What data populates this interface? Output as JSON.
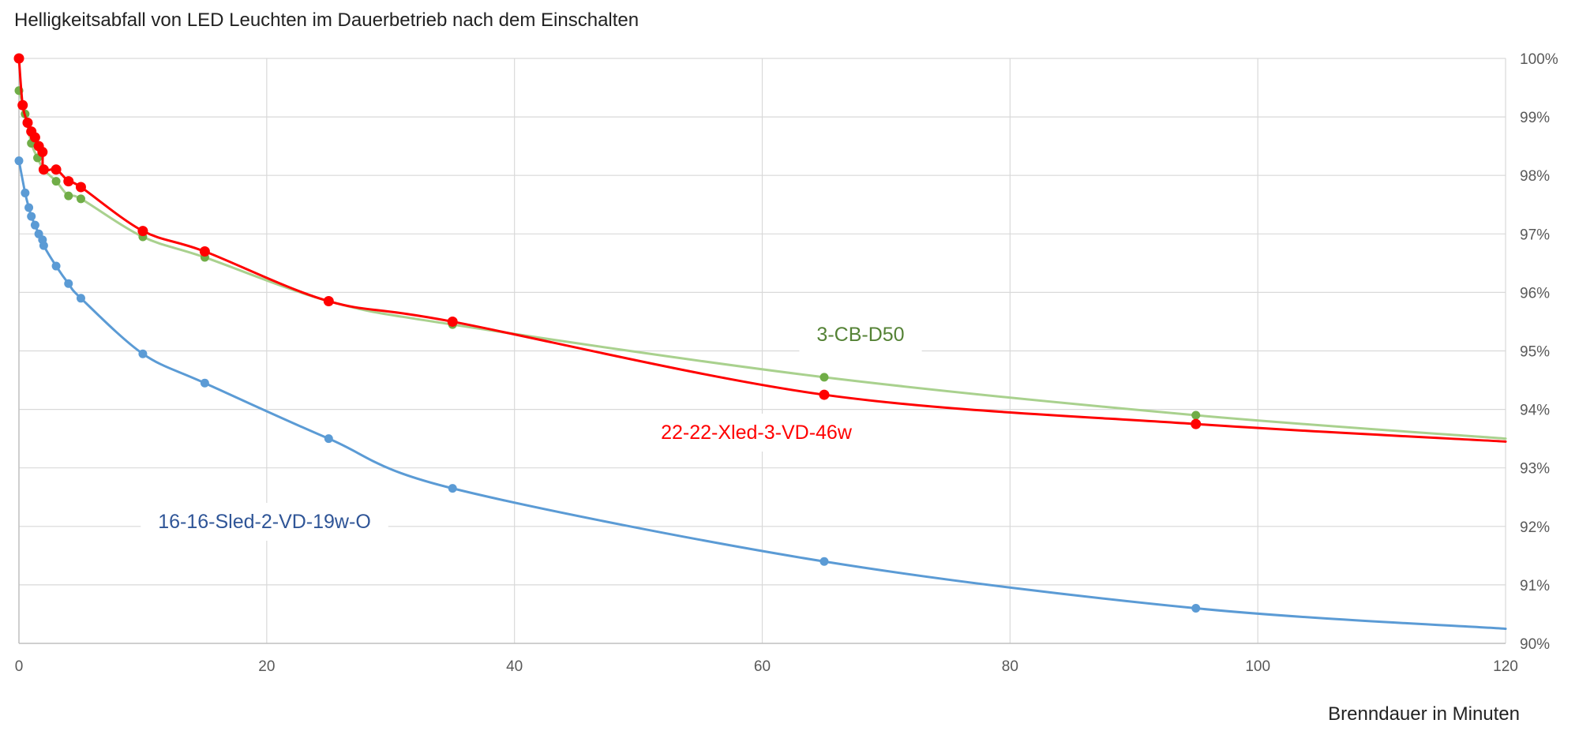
{
  "chart_data": {
    "type": "line",
    "title": "Helligkeitsabfall von LED Leuchten im Dauerbetrieb nach dem Einschalten",
    "xlabel": "Brenndauer in Minuten",
    "ylabel": "",
    "xlim": [
      0,
      120
    ],
    "ylim": [
      90,
      100
    ],
    "x_ticks": [
      "0",
      "20",
      "40",
      "60",
      "80",
      "100",
      "120"
    ],
    "y_ticks": [
      "90%",
      "91%",
      "92%",
      "93%",
      "94%",
      "95%",
      "96%",
      "97%",
      "98%",
      "99%",
      "100%"
    ],
    "y_axis_side": "right",
    "grid": true,
    "legend": "none (inline series labels)",
    "series": [
      {
        "name": "3-CB-D50",
        "color": "#a9d18e",
        "marker_color": "#70ad47",
        "label_color": "#548235",
        "x": [
          0,
          0.5,
          1,
          1.5,
          2,
          3,
          4,
          5,
          10,
          15,
          25,
          35,
          65,
          95,
          120
        ],
        "y": [
          99.45,
          99.05,
          98.55,
          98.3,
          98.1,
          97.9,
          97.65,
          97.6,
          96.95,
          96.6,
          95.85,
          95.45,
          94.55,
          93.9,
          93.5
        ]
      },
      {
        "name": "22-22-Xled-3-VD-46w",
        "color": "#ff0000",
        "marker_color": "#ff0000",
        "label_color": "#ff0000",
        "x": [
          0,
          0.3,
          0.7,
          1,
          1.3,
          1.6,
          1.9,
          2,
          3,
          4,
          5,
          10,
          15,
          25,
          35,
          65,
          95,
          120
        ],
        "y": [
          100,
          99.2,
          98.9,
          98.75,
          98.65,
          98.5,
          98.4,
          98.1,
          98.1,
          97.9,
          97.8,
          97.05,
          96.7,
          95.85,
          95.5,
          94.25,
          93.75,
          93.45
        ]
      },
      {
        "name": "16-16-Sled-2-VD-19w-O",
        "color": "#5b9bd5",
        "marker_color": "#5b9bd5",
        "label_color": "#2f5597",
        "x": [
          0,
          0.5,
          0.8,
          1,
          1.3,
          1.6,
          1.9,
          2,
          3,
          4,
          5,
          10,
          15,
          25,
          35,
          65,
          95,
          120
        ],
        "y": [
          98.25,
          97.7,
          97.45,
          97.3,
          97.15,
          97.0,
          96.9,
          96.8,
          96.45,
          96.15,
          95.9,
          94.95,
          94.45,
          93.5,
          92.65,
          91.4,
          90.6,
          90.25
        ]
      }
    ]
  }
}
